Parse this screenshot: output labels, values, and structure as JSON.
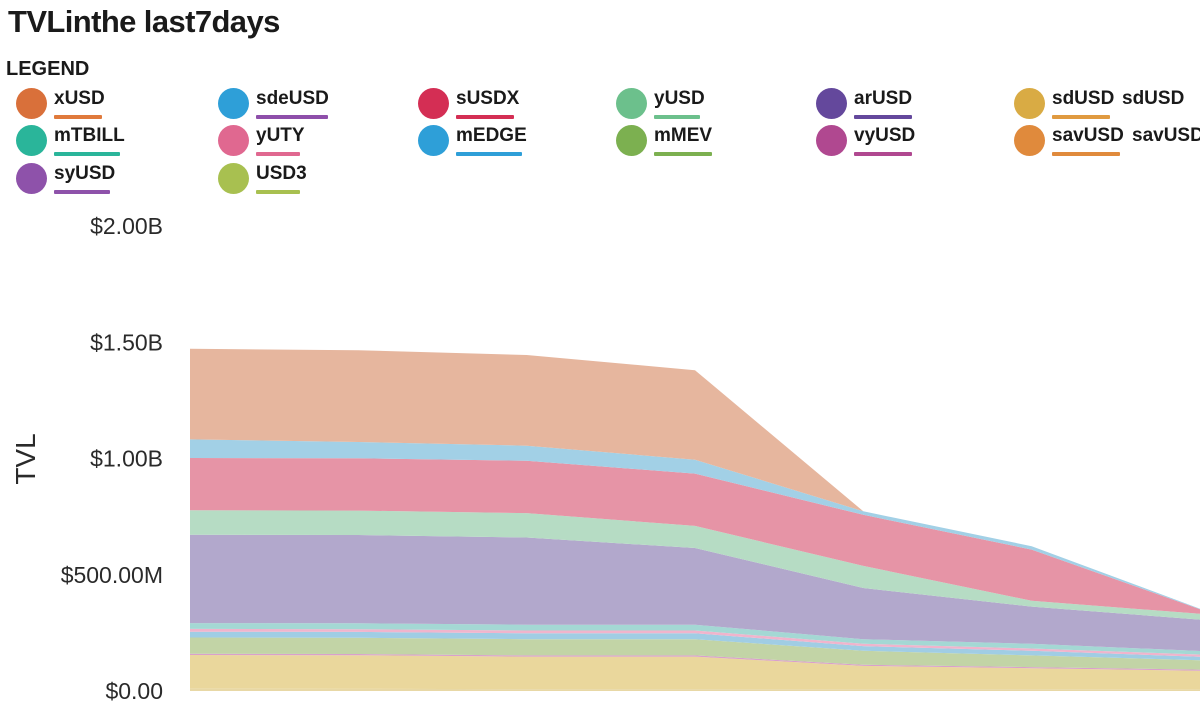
{
  "chart_data": {
    "type": "area",
    "stacked": true,
    "title": "TVLinthe last7days",
    "legend_title": "LEGEND",
    "xlabel": "",
    "ylabel": "TVL",
    "ylim": [
      0,
      2000000000
    ],
    "grid": false,
    "x": [
      1,
      2,
      3,
      4,
      5,
      6,
      7
    ],
    "ytick_values": [
      0,
      500000000,
      1000000000,
      1500000000,
      2000000000
    ],
    "ytick_labels": [
      "$0.00",
      "$500.00M",
      "$1.00B",
      "$1.50B",
      "$2.00B"
    ],
    "legend": [
      {
        "name": "xUSD",
        "color": "#d9703a",
        "bar": "#e07a3c"
      },
      {
        "name": "sdeUSD",
        "color": "#2e9fd8",
        "bar": "#8e4faa"
      },
      {
        "name": "sUSDX",
        "color": "#d42e54",
        "bar": "#d42e54"
      },
      {
        "name": "yUSD",
        "color": "#6cc08c",
        "bar": "#6cc08c"
      },
      {
        "name": "arUSD",
        "color": "#64489c",
        "bar": "#64489c"
      },
      {
        "name": "sdUSD",
        "color": "#d9ab44",
        "bar": "#e09a40",
        "extra": "sdUSD"
      },
      {
        "name": "mTBILL",
        "color": "#2ab59a",
        "bar": "#2ab59a"
      },
      {
        "name": "yUTY",
        "color": "#e06890",
        "bar": "#e06890"
      },
      {
        "name": "mEDGE",
        "color": "#2e9fd8",
        "bar": "#2e9fd8"
      },
      {
        "name": "mMEV",
        "color": "#7cb050",
        "bar": "#7cb050"
      },
      {
        "name": "vyUSD",
        "color": "#b04890",
        "bar": "#b04890"
      },
      {
        "name": "savUSD",
        "color": "#e08a3c",
        "bar": "#e08a3c",
        "extra": "savUSD"
      },
      {
        "name": "syUSD",
        "color": "#8e52aa",
        "bar": "#8e52aa"
      },
      {
        "name": "USD3",
        "color": "#a8c050",
        "bar": "#a8c050"
      }
    ],
    "series": [
      {
        "name": "sdUSD",
        "color": "#e8d8a6",
        "values": [
          10000000,
          9000000,
          8000000,
          8000000,
          8000000,
          8000000,
          7000000
        ]
      },
      {
        "name": "sdUSD",
        "color": "#ead79c",
        "values": [
          145000000,
          145000000,
          140000000,
          140000000,
          100000000,
          90000000,
          80000000
        ]
      },
      {
        "name": "vyUSD",
        "color": "#d9a0cc",
        "values": [
          5000000,
          5000000,
          5000000,
          5000000,
          5000000,
          5000000,
          5000000
        ]
      },
      {
        "name": "mMEV",
        "color": "#c2d4a6",
        "values": [
          70000000,
          70000000,
          70000000,
          70000000,
          60000000,
          50000000,
          40000000
        ]
      },
      {
        "name": "mEDGE",
        "color": "#a0cde4",
        "values": [
          25000000,
          25000000,
          25000000,
          25000000,
          20000000,
          20000000,
          15000000
        ]
      },
      {
        "name": "yUTY",
        "color": "#f0b4cc",
        "values": [
          12000000,
          12000000,
          12000000,
          12000000,
          10000000,
          10000000,
          10000000
        ]
      },
      {
        "name": "mTBILL",
        "color": "#a4d8d4",
        "values": [
          25000000,
          25000000,
          25000000,
          25000000,
          20000000,
          20000000,
          15000000
        ]
      },
      {
        "name": "syUSD",
        "color": "#b2a8cc",
        "values": [
          380000000,
          380000000,
          375000000,
          330000000,
          220000000,
          160000000,
          135000000
        ]
      },
      {
        "name": "yUSD",
        "color": "#b6dcc4",
        "values": [
          105000000,
          105000000,
          105000000,
          95000000,
          95000000,
          25000000,
          25000000
        ]
      },
      {
        "name": "sUSDX",
        "color": "#e694a6",
        "values": [
          225000000,
          225000000,
          225000000,
          225000000,
          220000000,
          220000000,
          20000000
        ]
      },
      {
        "name": "sdeUSD",
        "color": "#a2d0e6",
        "values": [
          80000000,
          70000000,
          65000000,
          60000000,
          15000000,
          15000000,
          2000000
        ]
      },
      {
        "name": "xUSD",
        "color": "#e6b69e",
        "values": [
          390000000,
          395000000,
          390000000,
          385000000,
          0,
          0,
          0
        ]
      }
    ]
  }
}
